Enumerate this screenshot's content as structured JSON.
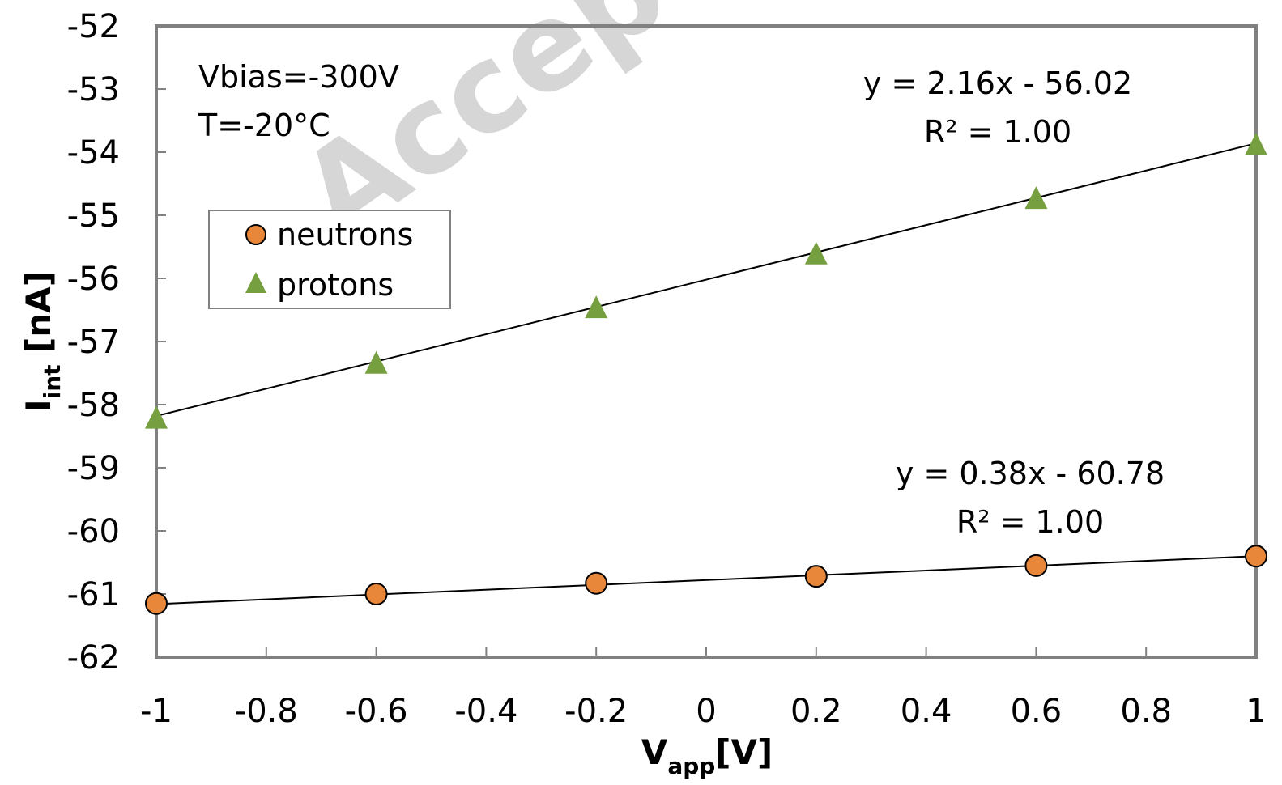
{
  "watermark": "Accepted",
  "chart_data": {
    "type": "scatter",
    "xlabel": "V",
    "xlabel_sub": "app",
    "xlabel_unit": "[V]",
    "ylabel": "I",
    "ylabel_sub": "int",
    "ylabel_unit": " [nA]",
    "xlim": [
      -1,
      1
    ],
    "ylim": [
      -62,
      -52
    ],
    "x_ticks": [
      "-1",
      "-0.8",
      "-0.6",
      "-0.4",
      "-0.2",
      "0",
      "0.2",
      "0.4",
      "0.6",
      "0.8",
      "1"
    ],
    "y_ticks": [
      "-52",
      "-53",
      "-54",
      "-55",
      "-56",
      "-57",
      "-58",
      "-59",
      "-60",
      "-61",
      "-62"
    ],
    "grid": false,
    "legend_position": "top-left",
    "annotations": [
      "Vbias=-300V",
      "T=-20°C"
    ],
    "series": [
      {
        "name": "neutrons",
        "marker": "circle",
        "color": "#E8873A",
        "x": [
          -1,
          -0.6,
          -0.2,
          0.2,
          0.6,
          1
        ],
        "y": [
          -61.15,
          -61.0,
          -60.83,
          -60.72,
          -60.55,
          -60.4
        ],
        "trendline": {
          "slope": 0.38,
          "intercept": -60.78
        },
        "equation": "y = 0.38x - 60.78",
        "r2": "R² = 1.00"
      },
      {
        "name": "protons",
        "marker": "triangle",
        "color": "#76A040",
        "x": [
          -1,
          -0.6,
          -0.2,
          0.2,
          0.6,
          1
        ],
        "y": [
          -58.2,
          -57.33,
          -56.45,
          -55.6,
          -54.72,
          -53.87
        ],
        "trendline": {
          "slope": 2.16,
          "intercept": -56.02
        },
        "equation": "y = 2.16x - 56.02",
        "r2": "R² = 1.00"
      }
    ]
  }
}
